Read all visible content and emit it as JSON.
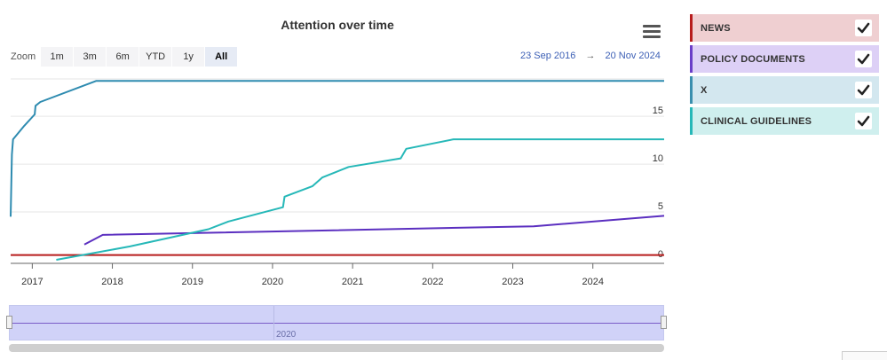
{
  "chart_data": {
    "type": "line",
    "title": "Attention over time",
    "xlabel": "",
    "ylabel": "",
    "xlim": [
      2016.73,
      2024.89
    ],
    "ylim": [
      0,
      19
    ],
    "x_ticks": [
      "2017",
      "2018",
      "2019",
      "2020",
      "2021",
      "2022",
      "2023",
      "2024"
    ],
    "y_ticks": [
      0,
      5,
      10,
      15
    ],
    "grid": true,
    "legend_position": "right",
    "series": [
      {
        "name": "NEWS",
        "color": "#b71c1c",
        "x": [
          2016.73,
          2024.89
        ],
        "y": [
          0.5,
          0.5
        ]
      },
      {
        "name": "POLICY DOCUMENTS",
        "color": "#5b2fc0",
        "x": [
          2017.65,
          2017.88,
          2023.26,
          2024.89
        ],
        "y": [
          1.6,
          2.6,
          3.5,
          4.6
        ]
      },
      {
        "name": "X",
        "color": "#2e8bb0",
        "x": [
          2016.73,
          2016.745,
          2016.76,
          2016.9,
          2017.03,
          2017.04,
          2017.1,
          2017.8,
          2024.89
        ],
        "y": [
          4.5,
          11,
          12.6,
          14,
          15.2,
          16.1,
          16.5,
          18.7,
          18.7
        ]
      },
      {
        "name": "CLINICAL GUIDELINES",
        "color": "#26b8b8",
        "x": [
          2017.3,
          2018.22,
          2019.2,
          2019.45,
          2020.13,
          2020.15,
          2020.5,
          2020.62,
          2020.95,
          2021.6,
          2021.67,
          2022.26,
          2024.89
        ],
        "y": [
          0,
          1.4,
          3.2,
          4.0,
          5.5,
          6.6,
          7.7,
          8.6,
          9.7,
          10.6,
          11.6,
          12.6,
          12.6
        ]
      }
    ]
  },
  "toolbar": {
    "zoom_label": "Zoom",
    "zoom_buttons": [
      "1m",
      "3m",
      "6m",
      "YTD",
      "1y",
      "All"
    ],
    "active": "All"
  },
  "range": {
    "from": "23 Sep 2016",
    "arrow": "→",
    "to": "20 Nov 2024"
  },
  "navigator": {
    "label": "2020"
  },
  "legend": {
    "items": [
      {
        "label": "NEWS",
        "bar": "#b71c1c",
        "bg": "#efcfd1"
      },
      {
        "label": "POLICY DOCUMENTS",
        "bar": "#6a3ec8",
        "bg": "#ddd0f6"
      },
      {
        "label": "X",
        "bar": "#3a8fae",
        "bg": "#d3e7ef"
      },
      {
        "label": "CLINICAL GUIDELINES",
        "bar": "#26b8b8",
        "bg": "#cfefee"
      }
    ]
  }
}
